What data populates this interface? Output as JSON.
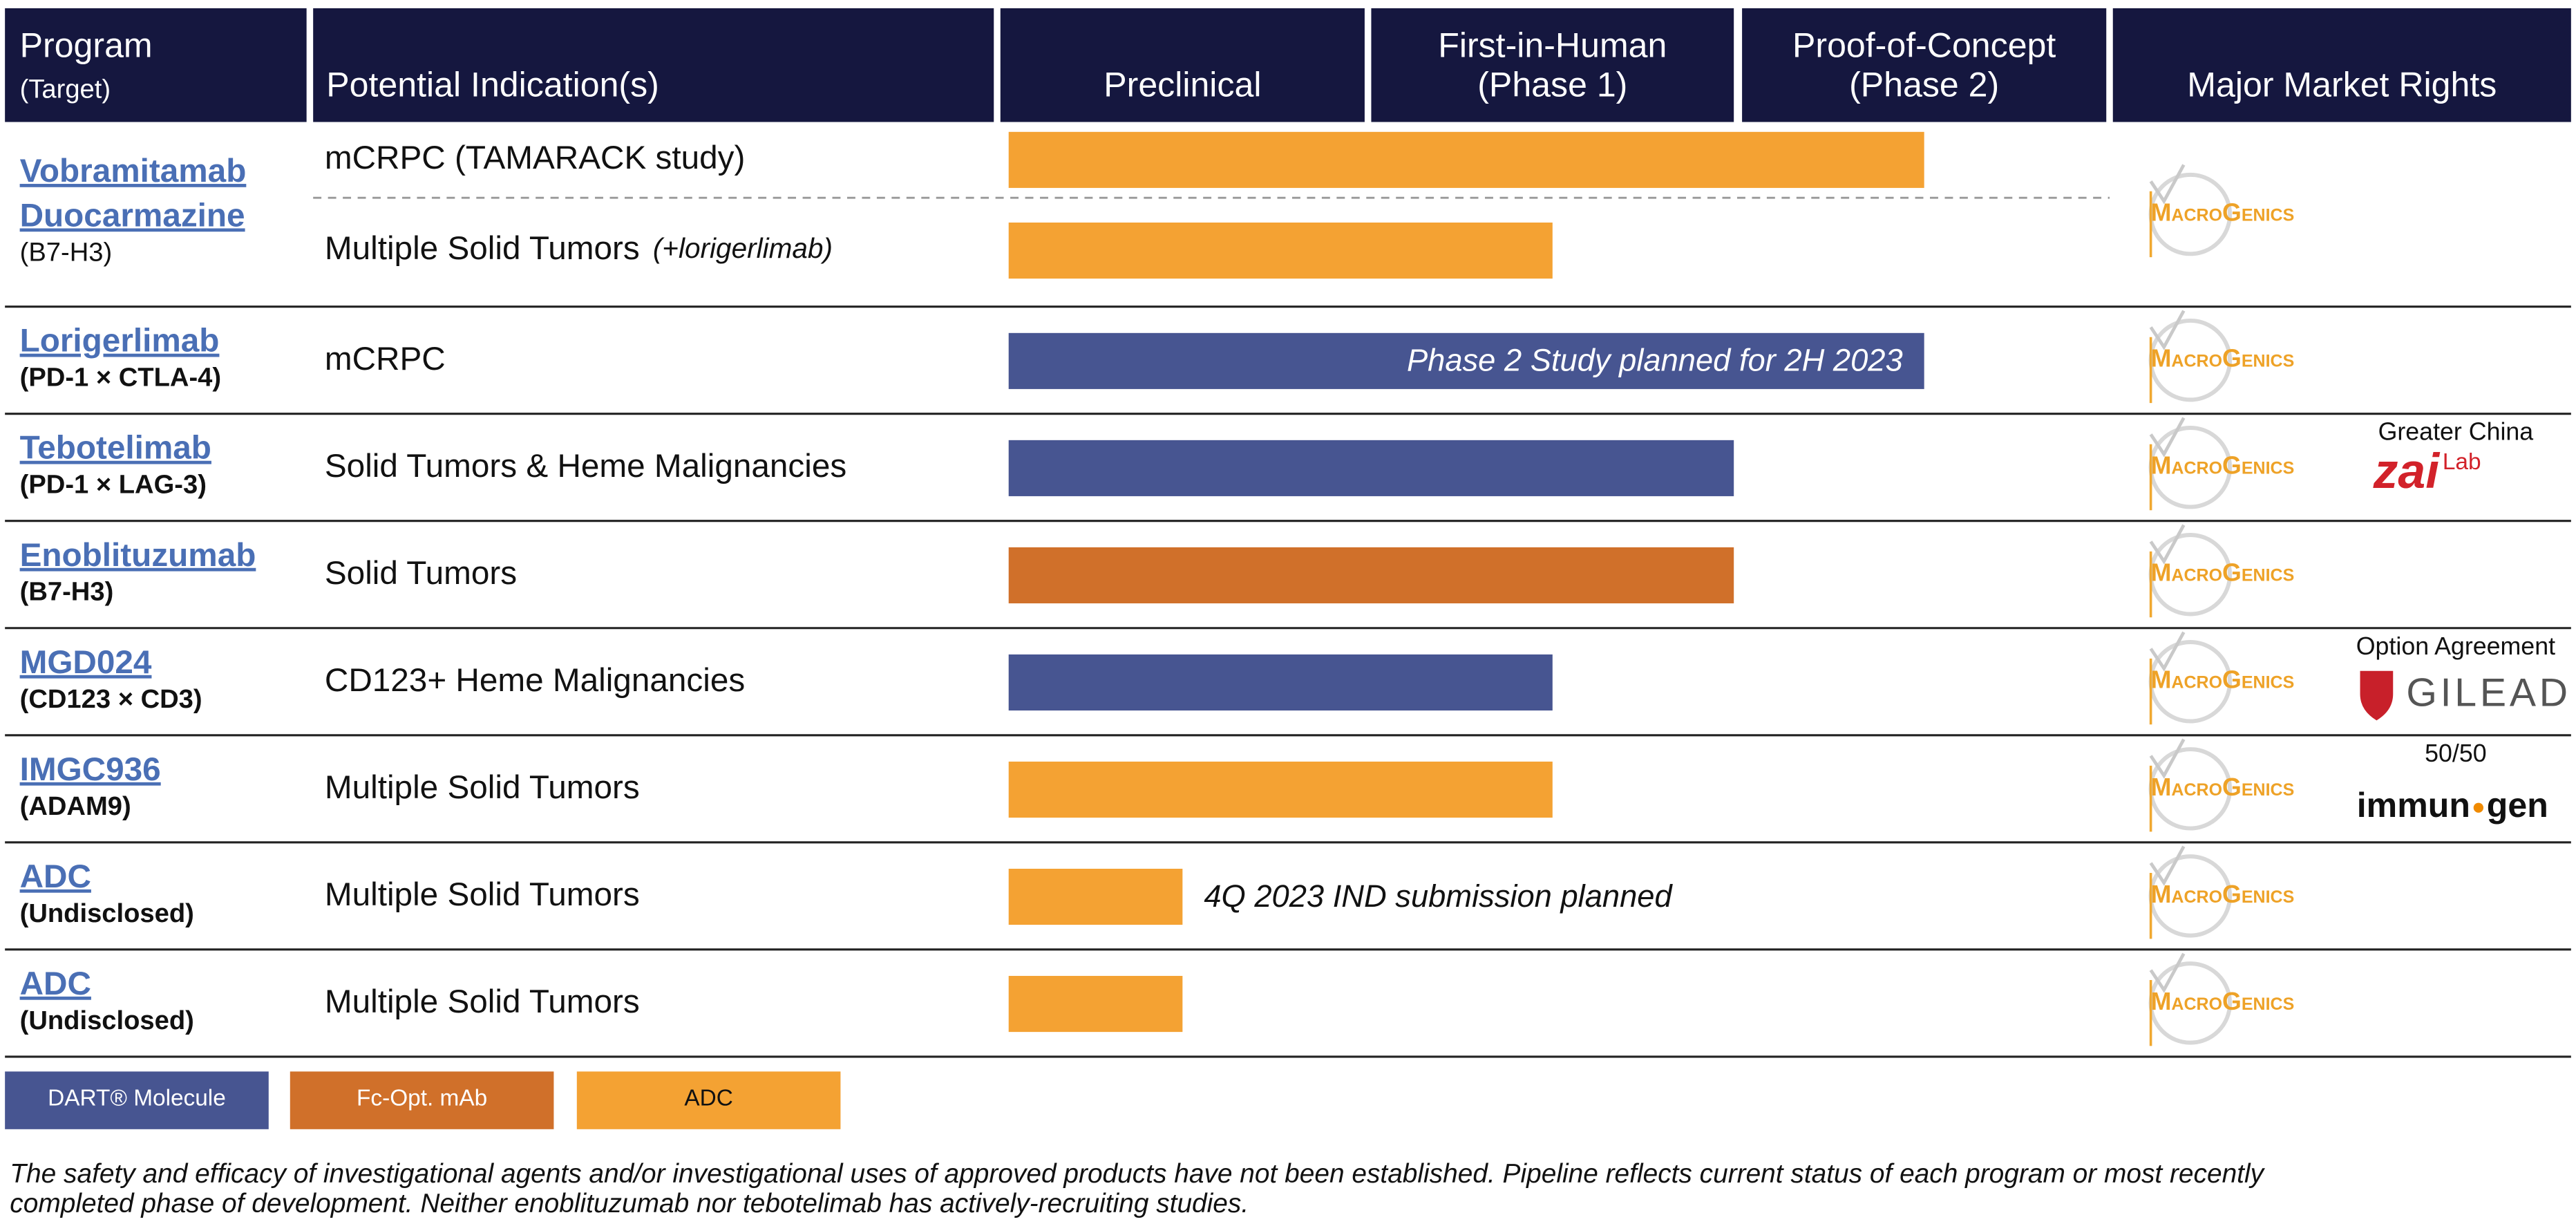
{
  "header": {
    "program": "Program",
    "target": "(Target)",
    "indication": "Potential Indication(s)",
    "phases": [
      [
        "Preclinical"
      ],
      [
        "First-in-Human",
        "(Phase 1)"
      ],
      [
        "Proof-of-Concept",
        "(Phase 2)"
      ]
    ],
    "rights": "Major Market Rights"
  },
  "rights_logo": "MacroGenics",
  "rows": [
    {
      "name": [
        "Vobramitamab",
        "Duocarmazine"
      ],
      "target": "(B7-H3)",
      "indications": [
        {
          "text": "mCRPC (TAMARACK study)",
          "progress": 2.5,
          "color": "#f4a233"
        },
        {
          "text": "Multiple Solid Tumors",
          "note": "(+lorigerlimab)",
          "progress": 1.5,
          "color": "#f4a233"
        }
      ]
    },
    {
      "name": [
        "Lorigerlimab"
      ],
      "target": "(PD-1 × CTLA-4)",
      "indications": [
        {
          "text": "mCRPC",
          "progress": 2.5,
          "color": "#475591",
          "bar_label": "Phase 2 Study planned for 2H 2023"
        }
      ]
    },
    {
      "name": [
        "Tebotelimab"
      ],
      "target": "(PD-1 × LAG-3)",
      "indications": [
        {
          "text": "Solid Tumors & Heme Malignancies",
          "progress": 2.0,
          "color": "#475591"
        }
      ],
      "partner": {
        "note": "Greater China",
        "logo": [
          "zai",
          "Lab"
        ],
        "color": "#d2222a"
      }
    },
    {
      "name": [
        "Enoblituzumab"
      ],
      "target": "(B7-H3)",
      "indications": [
        {
          "text": "Solid Tumors",
          "progress": 2.0,
          "color": "#d0702a"
        }
      ]
    },
    {
      "name": [
        "MGD024"
      ],
      "target": "(CD123 × CD3)",
      "indications": [
        {
          "text": "CD123+ Heme Malignancies",
          "progress": 1.5,
          "color": "#475591"
        }
      ],
      "partner": {
        "note": "Option Agreement",
        "logo": [
          "GILEAD"
        ],
        "color": "#555555"
      }
    },
    {
      "name": [
        "IMGC936"
      ],
      "target": "(ADAM9)",
      "indications": [
        {
          "text": "Multiple Solid Tumors",
          "progress": 1.5,
          "color": "#f4a233"
        }
      ],
      "partner": {
        "note": "50/50",
        "logo": [
          "immun",
          "gen"
        ],
        "color": "#111111"
      }
    },
    {
      "name": [
        "ADC"
      ],
      "target": "(Undisclosed)",
      "indications": [
        {
          "text": "Multiple Solid Tumors",
          "progress": 0.5,
          "color": "#f4a233",
          "bar_label": "4Q 2023 IND submission planned"
        }
      ]
    },
    {
      "name": [
        "ADC"
      ],
      "target": "(Undisclosed)",
      "indications": [
        {
          "text": "Multiple Solid Tumors",
          "progress": 0.5,
          "color": "#f4a233"
        }
      ]
    }
  ],
  "legend": [
    {
      "label": "DART® Molecule",
      "color": "#475591",
      "text_color": "#ffffff"
    },
    {
      "label": "Fc-Opt. mAb",
      "color": "#d0702a",
      "text_color": "#ffffff"
    },
    {
      "label": "ADC",
      "color": "#f4a233",
      "text_color": "#111111"
    }
  ],
  "footnote": [
    "The safety and efficacy of investigational agents and/or investigational uses of approved products have not been established. Pipeline reflects current status of each program or most recently",
    "completed phase of development. Neither enoblituzumab nor tebotelimab has actively-recruiting studies."
  ]
}
